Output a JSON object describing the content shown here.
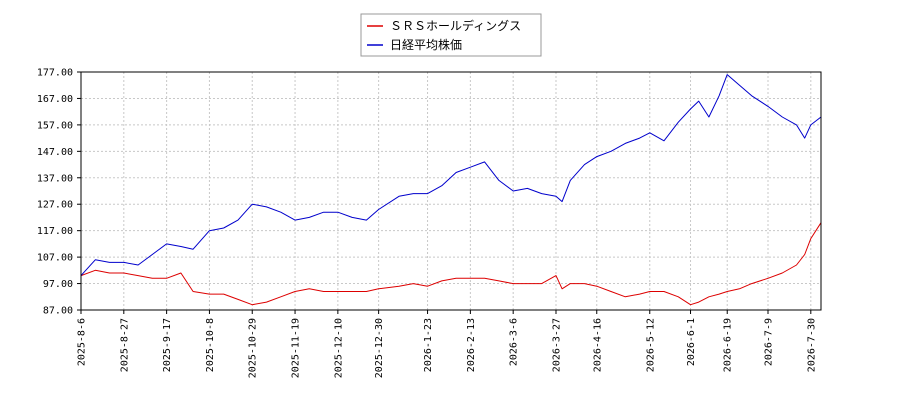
{
  "chart_data": {
    "type": "line",
    "title": "",
    "xlabel": "",
    "ylabel": "",
    "ylim": [
      87.0,
      177.0
    ],
    "y_ticks": [
      "87.00",
      "97.00",
      "107.00",
      "117.00",
      "127.00",
      "137.00",
      "147.00",
      "157.00",
      "167.00",
      "177.00"
    ],
    "x_range": [
      "2025-8-6",
      "2026-8-4"
    ],
    "x_ticks": [
      "2025-8-6",
      "2025-8-27",
      "2025-9-17",
      "2025-10-8",
      "2025-10-29",
      "2025-11-19",
      "2025-12-10",
      "2025-12-30",
      "2026-1-23",
      "2026-2-13",
      "2026-3-6",
      "2026-3-27",
      "2026-4-16",
      "2026-5-12",
      "2026-6-1",
      "2026-6-19",
      "2026-7-9",
      "2026-7-30"
    ],
    "grid": true,
    "legend_position": "top-center",
    "series": [
      {
        "name": "ＳＲＳホールディングス",
        "color": "#dd0000",
        "points": [
          [
            "2025-8-6",
            100
          ],
          [
            "2025-8-13",
            102
          ],
          [
            "2025-8-20",
            101
          ],
          [
            "2025-8-27",
            101
          ],
          [
            "2025-9-3",
            100
          ],
          [
            "2025-9-10",
            99
          ],
          [
            "2025-9-17",
            99
          ],
          [
            "2025-9-24",
            101
          ],
          [
            "2025-9-30",
            94
          ],
          [
            "2025-10-8",
            93
          ],
          [
            "2025-10-15",
            93
          ],
          [
            "2025-10-22",
            91
          ],
          [
            "2025-10-29",
            89
          ],
          [
            "2025-11-5",
            90
          ],
          [
            "2025-11-12",
            92
          ],
          [
            "2025-11-19",
            94
          ],
          [
            "2025-11-26",
            95
          ],
          [
            "2025-12-3",
            94
          ],
          [
            "2025-12-10",
            94
          ],
          [
            "2025-12-17",
            94
          ],
          [
            "2025-12-24",
            94
          ],
          [
            "2025-12-30",
            95
          ],
          [
            "2026-1-9",
            96
          ],
          [
            "2026-1-16",
            97
          ],
          [
            "2026-1-23",
            96
          ],
          [
            "2026-1-30",
            98
          ],
          [
            "2026-2-6",
            99
          ],
          [
            "2026-2-13",
            99
          ],
          [
            "2026-2-20",
            99
          ],
          [
            "2026-2-27",
            98
          ],
          [
            "2026-3-6",
            97
          ],
          [
            "2026-3-13",
            97
          ],
          [
            "2026-3-20",
            97
          ],
          [
            "2026-3-27",
            100
          ],
          [
            "2026-3-30",
            95
          ],
          [
            "2026-4-3",
            97
          ],
          [
            "2026-4-10",
            97
          ],
          [
            "2026-4-16",
            96
          ],
          [
            "2026-4-23",
            94
          ],
          [
            "2026-4-30",
            92
          ],
          [
            "2026-5-7",
            93
          ],
          [
            "2026-5-12",
            94
          ],
          [
            "2026-5-19",
            94
          ],
          [
            "2026-5-26",
            92
          ],
          [
            "2026-6-1",
            89
          ],
          [
            "2026-6-5",
            90
          ],
          [
            "2026-6-10",
            92
          ],
          [
            "2026-6-15",
            93
          ],
          [
            "2026-6-19",
            94
          ],
          [
            "2026-6-25",
            95
          ],
          [
            "2026-7-1",
            97
          ],
          [
            "2026-7-9",
            99
          ],
          [
            "2026-7-16",
            101
          ],
          [
            "2026-7-23",
            104
          ],
          [
            "2026-7-27",
            108
          ],
          [
            "2026-7-30",
            114
          ],
          [
            "2026-8-4",
            120
          ]
        ]
      },
      {
        "name": "日経平均株価",
        "color": "#0000cc",
        "points": [
          [
            "2025-8-6",
            100
          ],
          [
            "2025-8-13",
            106
          ],
          [
            "2025-8-20",
            105
          ],
          [
            "2025-8-27",
            105
          ],
          [
            "2025-9-3",
            104
          ],
          [
            "2025-9-10",
            108
          ],
          [
            "2025-9-17",
            112
          ],
          [
            "2025-9-24",
            111
          ],
          [
            "2025-9-30",
            110
          ],
          [
            "2025-10-8",
            117
          ],
          [
            "2025-10-15",
            118
          ],
          [
            "2025-10-22",
            121
          ],
          [
            "2025-10-29",
            127
          ],
          [
            "2025-11-5",
            126
          ],
          [
            "2025-11-12",
            124
          ],
          [
            "2025-11-19",
            121
          ],
          [
            "2025-11-26",
            122
          ],
          [
            "2025-12-3",
            124
          ],
          [
            "2025-12-10",
            124
          ],
          [
            "2025-12-17",
            122
          ],
          [
            "2025-12-24",
            121
          ],
          [
            "2025-12-30",
            125
          ],
          [
            "2026-1-9",
            130
          ],
          [
            "2026-1-16",
            131
          ],
          [
            "2026-1-23",
            131
          ],
          [
            "2026-1-30",
            134
          ],
          [
            "2026-2-6",
            139
          ],
          [
            "2026-2-13",
            141
          ],
          [
            "2026-2-20",
            143
          ],
          [
            "2026-2-27",
            136
          ],
          [
            "2026-3-6",
            132
          ],
          [
            "2026-3-13",
            133
          ],
          [
            "2026-3-20",
            131
          ],
          [
            "2026-3-27",
            130
          ],
          [
            "2026-3-30",
            128
          ],
          [
            "2026-4-3",
            136
          ],
          [
            "2026-4-10",
            142
          ],
          [
            "2026-4-16",
            145
          ],
          [
            "2026-4-23",
            147
          ],
          [
            "2026-4-30",
            150
          ],
          [
            "2026-5-7",
            152
          ],
          [
            "2026-5-12",
            154
          ],
          [
            "2026-5-19",
            151
          ],
          [
            "2026-5-26",
            158
          ],
          [
            "2026-6-1",
            163
          ],
          [
            "2026-6-5",
            166
          ],
          [
            "2026-6-10",
            160
          ],
          [
            "2026-6-15",
            168
          ],
          [
            "2026-6-19",
            176
          ],
          [
            "2026-6-25",
            172
          ],
          [
            "2026-7-1",
            168
          ],
          [
            "2026-7-9",
            164
          ],
          [
            "2026-7-16",
            160
          ],
          [
            "2026-7-23",
            157
          ],
          [
            "2026-7-27",
            152
          ],
          [
            "2026-7-30",
            157
          ],
          [
            "2026-8-4",
            160
          ]
        ]
      }
    ]
  }
}
